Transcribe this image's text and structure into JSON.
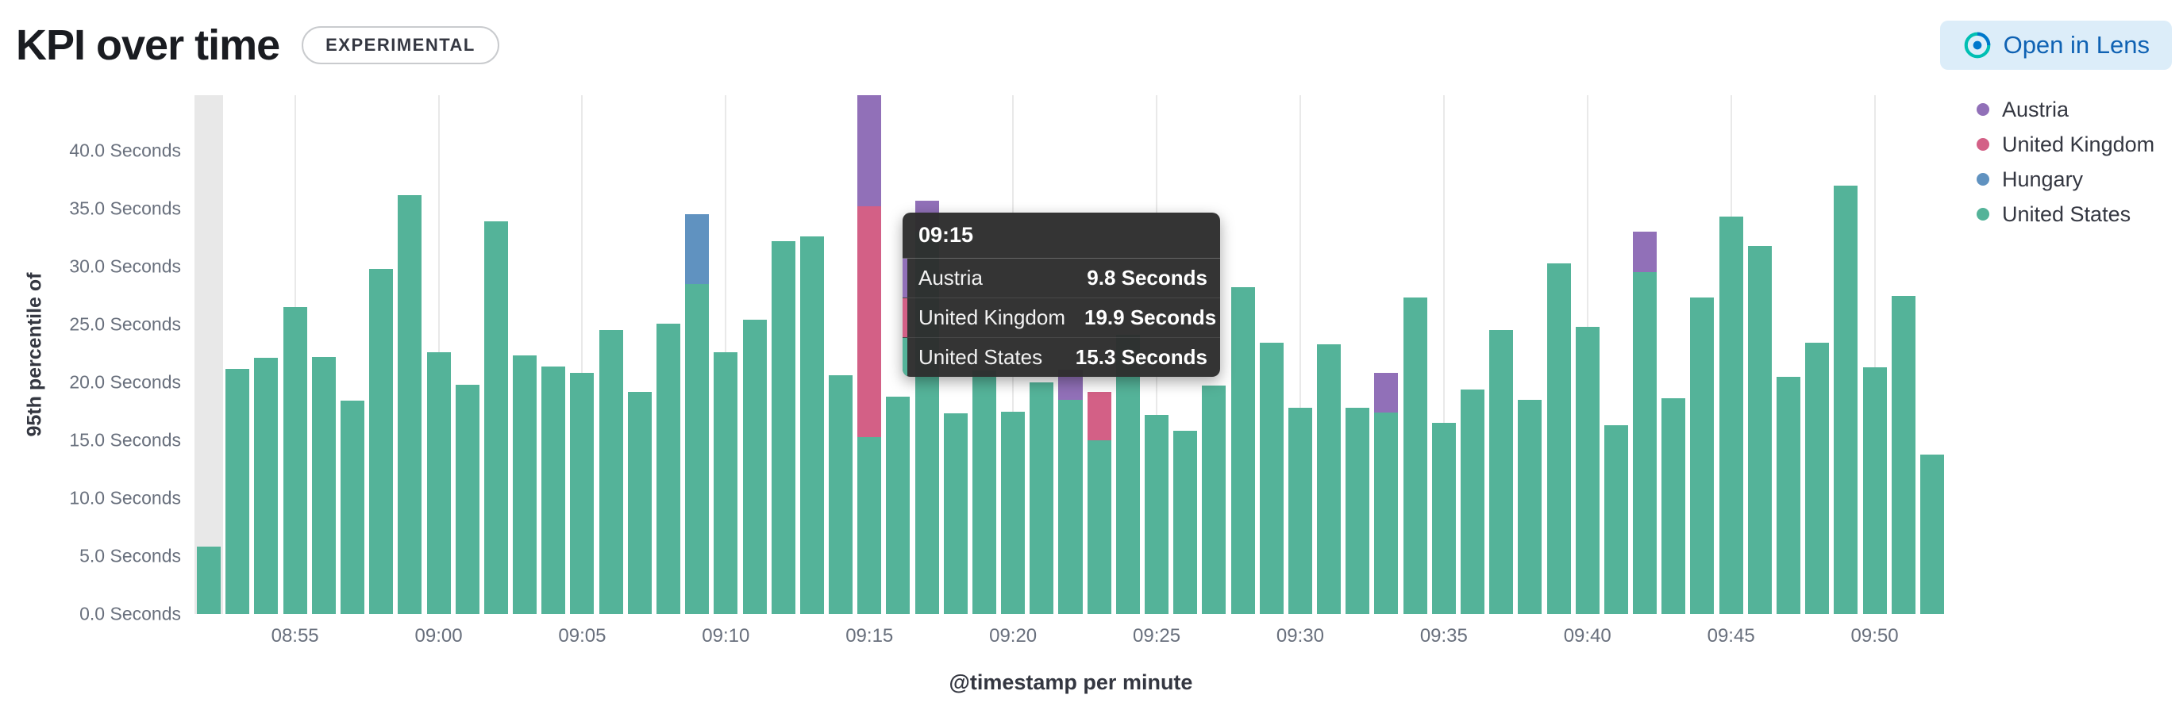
{
  "header": {
    "title": "KPI over time",
    "badge": "EXPERIMENTAL",
    "open_in_lens": "Open in Lens"
  },
  "colors": {
    "accent_blue": "#0F62B3",
    "lens_icon_teal": "#00BFB3",
    "lens_icon_blue": "#0077CC",
    "austria": "#9170B8",
    "united_kingdom": "#D36086",
    "hungary": "#6092C0",
    "united_states": "#54B399"
  },
  "legend": {
    "items": [
      {
        "label": "Austria",
        "color": "#9170B8"
      },
      {
        "label": "United Kingdom",
        "color": "#D36086"
      },
      {
        "label": "Hungary",
        "color": "#6092C0"
      },
      {
        "label": "United States",
        "color": "#54B399"
      }
    ]
  },
  "tooltip": {
    "header": "09:15",
    "rows": [
      {
        "label": "Austria",
        "value": "9.8 Seconds",
        "color": "#9170B8"
      },
      {
        "label": "United Kingdom",
        "value": "19.9 Seconds",
        "color": "#D36086"
      },
      {
        "label": "United States",
        "value": "15.3 Seconds",
        "color": "#54B399"
      }
    ]
  },
  "chart_data": {
    "type": "bar",
    "stacked": true,
    "title": "KPI over time",
    "xlabel": "@timestamp per minute",
    "ylabel": "95th percentile of",
    "unit": "Seconds",
    "ylim": [
      0,
      44.8
    ],
    "grid": "vertical",
    "legend_position": "right",
    "highlighted_category": "09:15",
    "partial_bucket_index": 0,
    "categories": [
      "08:52",
      "08:53",
      "08:54",
      "08:55",
      "08:56",
      "08:57",
      "08:58",
      "08:59",
      "09:00",
      "09:01",
      "09:02",
      "09:03",
      "09:04",
      "09:05",
      "09:06",
      "09:07",
      "09:08",
      "09:09",
      "09:10",
      "09:11",
      "09:12",
      "09:13",
      "09:14",
      "09:15",
      "09:16",
      "09:17",
      "09:18",
      "09:19",
      "09:20",
      "09:21",
      "09:22",
      "09:23",
      "09:24",
      "09:25",
      "09:26",
      "09:27",
      "09:28",
      "09:29",
      "09:30",
      "09:31",
      "09:32",
      "09:33",
      "09:34",
      "09:35",
      "09:36",
      "09:37",
      "09:38",
      "09:39",
      "09:40",
      "09:41",
      "09:42",
      "09:43",
      "09:44",
      "09:45",
      "09:46",
      "09:47",
      "09:48",
      "09:49",
      "09:50",
      "09:51",
      "09:52"
    ],
    "series": [
      {
        "name": "United States",
        "color": "#54B399",
        "values": [
          5.8,
          21.2,
          22.1,
          26.5,
          22.2,
          18.4,
          29.8,
          36.2,
          22.6,
          19.8,
          33.9,
          22.3,
          21.4,
          20.8,
          24.5,
          19.2,
          25.1,
          28.5,
          22.6,
          25.4,
          32.2,
          32.6,
          20.6,
          15.3,
          18.8,
          33.0,
          17.3,
          21.0,
          17.5,
          20.0,
          18.5,
          15.0,
          24.1,
          17.2,
          15.8,
          19.7,
          28.2,
          23.4,
          17.8,
          23.3,
          17.8,
          17.4,
          27.3,
          16.5,
          19.4,
          24.5,
          18.5,
          30.3,
          24.8,
          16.3,
          29.5,
          18.6,
          27.3,
          34.3,
          31.8,
          20.5,
          23.4,
          37.0,
          21.3,
          27.5,
          13.8
        ]
      },
      {
        "name": "Hungary",
        "color": "#6092C0",
        "values": [
          0,
          0,
          0,
          0,
          0,
          0,
          0,
          0,
          0,
          0,
          0,
          0,
          0,
          0,
          0,
          0,
          0,
          6.0,
          0,
          0,
          0,
          0,
          0,
          0,
          0,
          0,
          0,
          0,
          0,
          0,
          0,
          0,
          0,
          0,
          0,
          0,
          0,
          0,
          0,
          0,
          0,
          0,
          0,
          0,
          0,
          0,
          0,
          0,
          0,
          0,
          0,
          0,
          0,
          0,
          0,
          0,
          0,
          0,
          0,
          0,
          0
        ]
      },
      {
        "name": "United Kingdom",
        "color": "#D36086",
        "values": [
          0,
          0,
          0,
          0,
          0,
          0,
          0,
          0,
          0,
          0,
          0,
          0,
          0,
          0,
          0,
          0,
          0,
          0,
          0,
          0,
          0,
          0,
          0,
          19.9,
          0,
          0,
          0,
          0,
          0,
          0,
          0,
          4.2,
          0,
          0,
          0,
          0,
          0,
          0,
          0,
          0,
          0,
          0,
          0,
          0,
          0,
          0,
          0,
          0,
          0,
          0,
          0,
          0,
          0,
          0,
          0,
          0,
          0,
          0,
          0,
          0,
          0
        ]
      },
      {
        "name": "Austria",
        "color": "#9170B8",
        "values": [
          0,
          0,
          0,
          0,
          0,
          0,
          0,
          0,
          0,
          0,
          0,
          0,
          0,
          0,
          0,
          0,
          0,
          0,
          0,
          0,
          0,
          0,
          0,
          9.8,
          0,
          2.7,
          0,
          0,
          0,
          0,
          2.6,
          0,
          0,
          0,
          0,
          0,
          0,
          0,
          0,
          0,
          0,
          3.4,
          0,
          0,
          0,
          0,
          0,
          0,
          0,
          0,
          3.5,
          0,
          0,
          0,
          0,
          0,
          0,
          0,
          0,
          0,
          0
        ]
      }
    ],
    "y_ticks": [
      {
        "value": 0,
        "label": "0.0 Seconds"
      },
      {
        "value": 5,
        "label": "5.0 Seconds"
      },
      {
        "value": 10,
        "label": "10.0 Seconds"
      },
      {
        "value": 15,
        "label": "15.0 Seconds"
      },
      {
        "value": 20,
        "label": "20.0 Seconds"
      },
      {
        "value": 25,
        "label": "25.0 Seconds"
      },
      {
        "value": 30,
        "label": "30.0 Seconds"
      },
      {
        "value": 35,
        "label": "35.0 Seconds"
      },
      {
        "value": 40,
        "label": "40.0 Seconds"
      }
    ],
    "x_ticks": [
      {
        "index": 3,
        "label": "08:55"
      },
      {
        "index": 8,
        "label": "09:00"
      },
      {
        "index": 13,
        "label": "09:05"
      },
      {
        "index": 18,
        "label": "09:10"
      },
      {
        "index": 23,
        "label": "09:15"
      },
      {
        "index": 28,
        "label": "09:20"
      },
      {
        "index": 33,
        "label": "09:25"
      },
      {
        "index": 38,
        "label": "09:30"
      },
      {
        "index": 43,
        "label": "09:35"
      },
      {
        "index": 48,
        "label": "09:40"
      },
      {
        "index": 53,
        "label": "09:45"
      },
      {
        "index": 58,
        "label": "09:50"
      }
    ]
  }
}
